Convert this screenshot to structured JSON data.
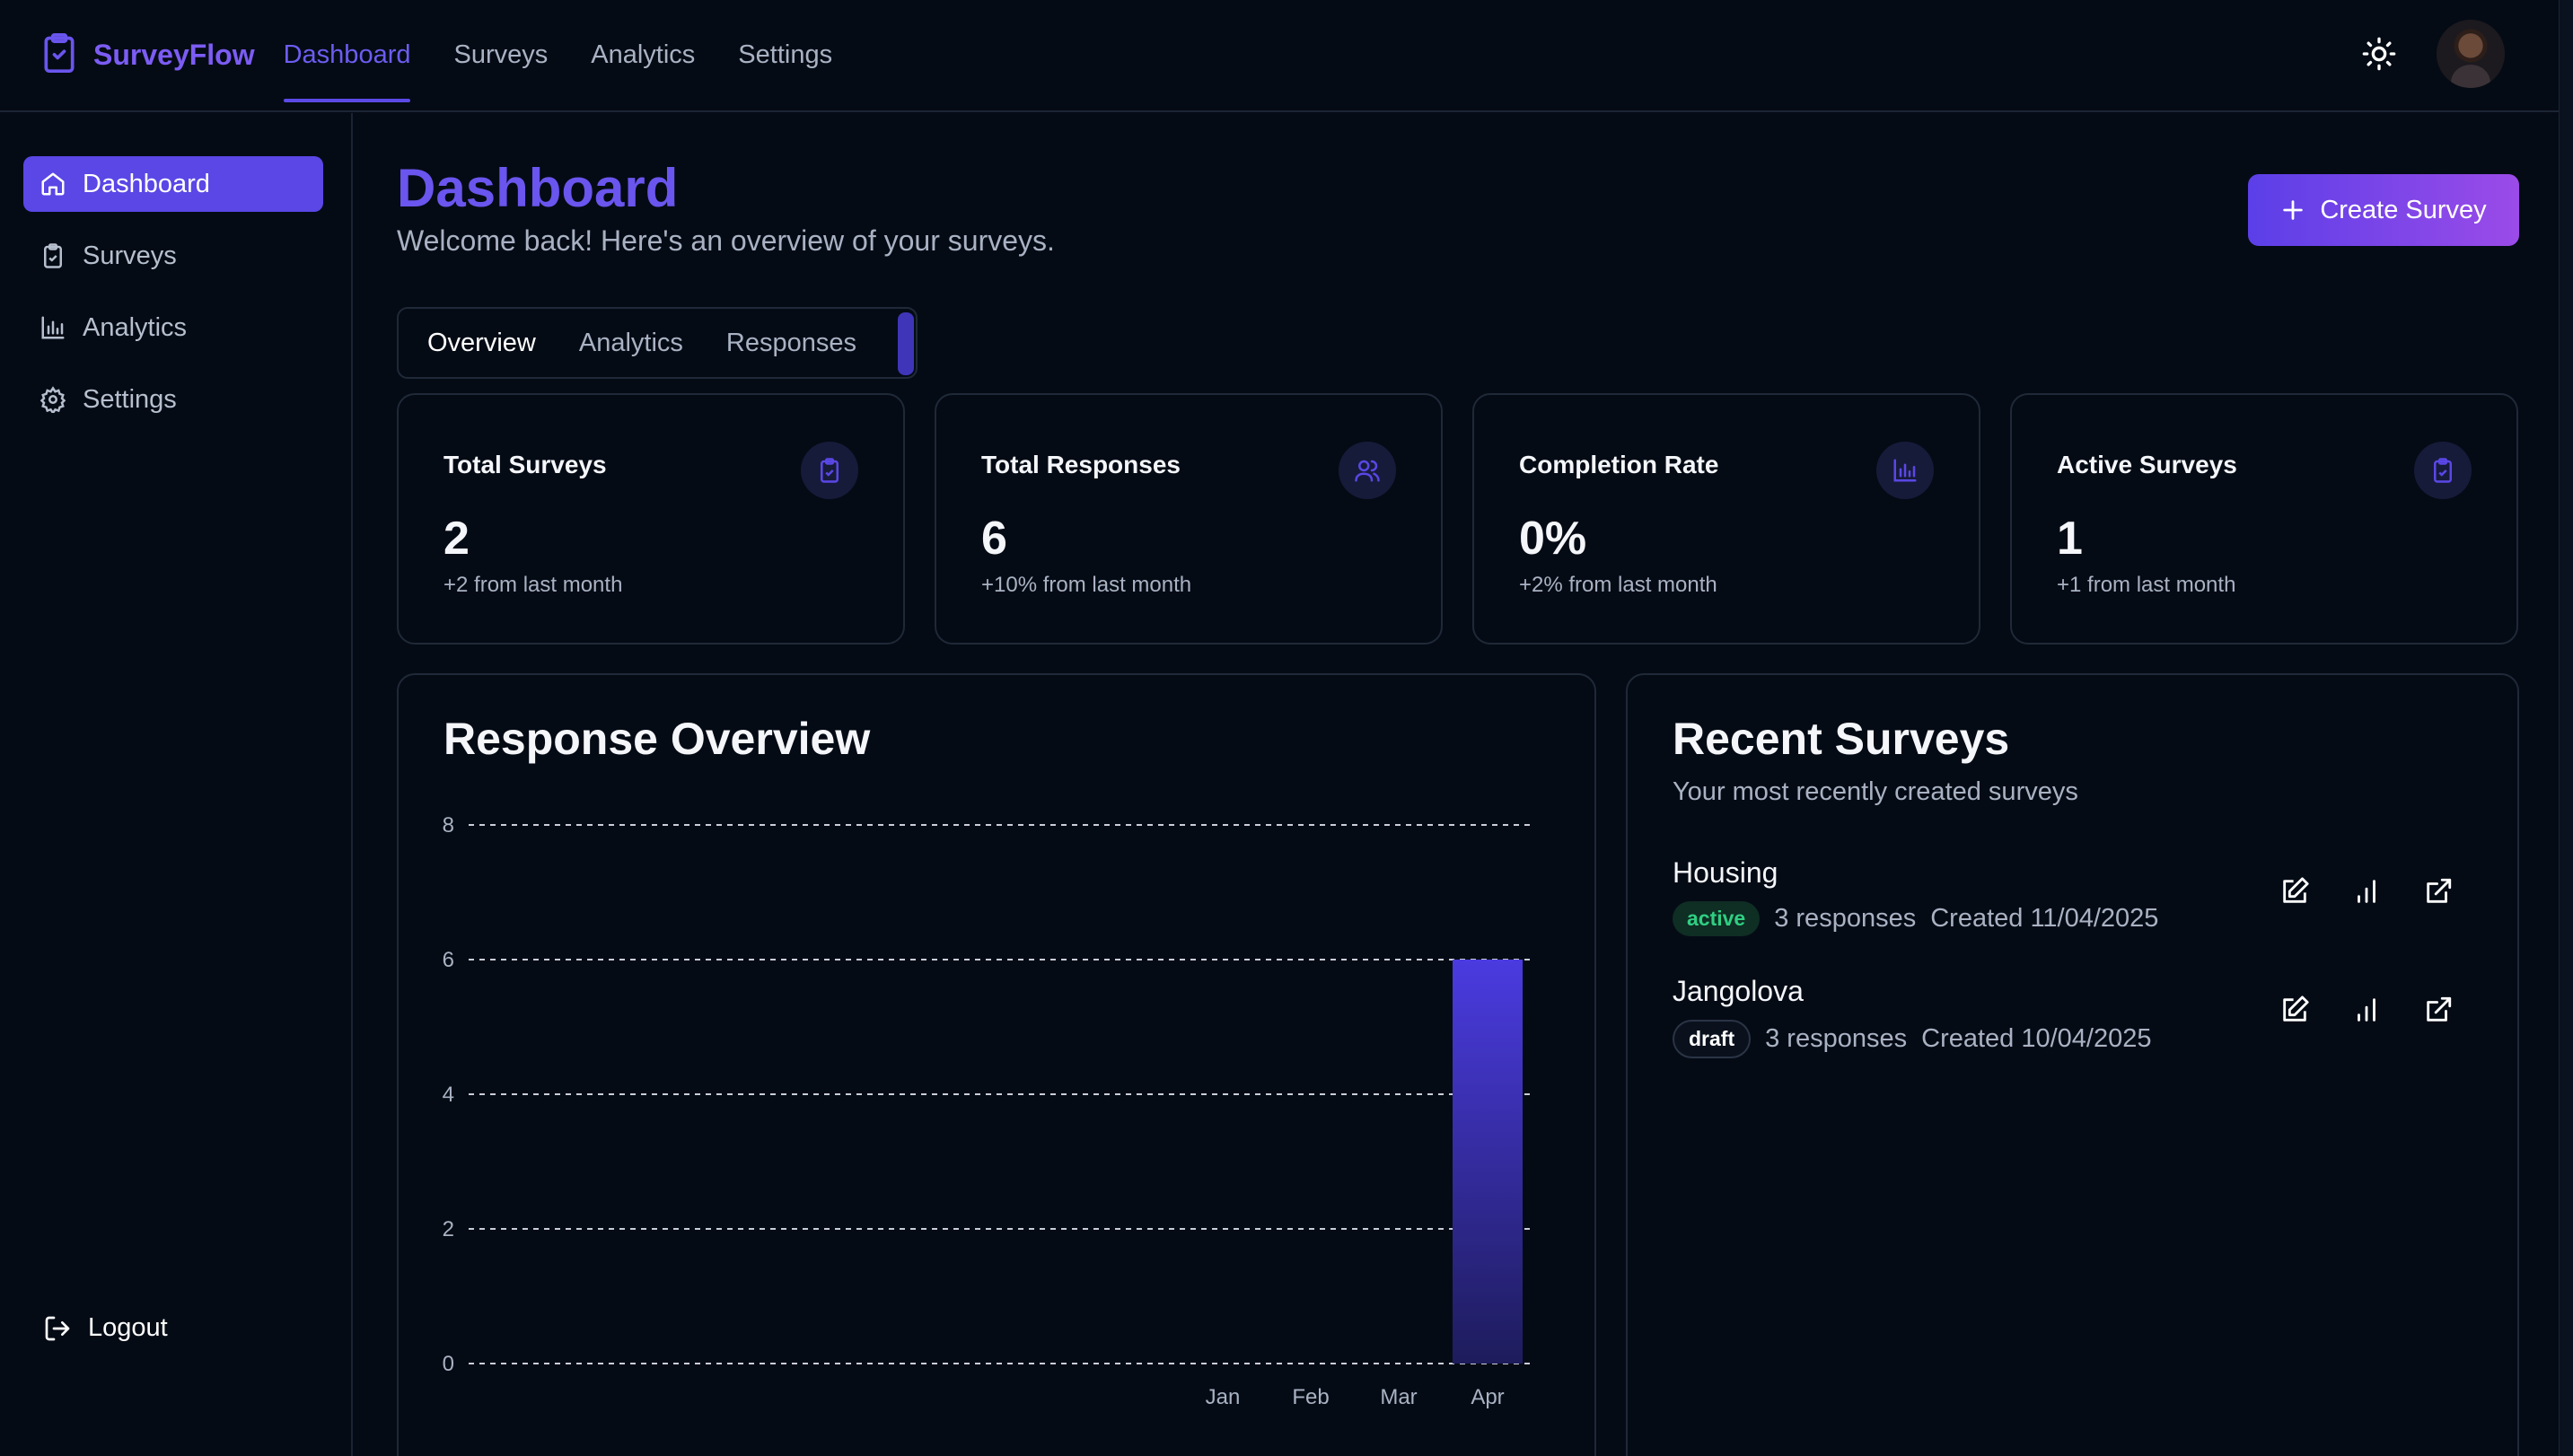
{
  "brand": {
    "name": "SurveyFlow"
  },
  "topnav": [
    "Dashboard",
    "Surveys",
    "Analytics",
    "Settings"
  ],
  "sidebar": {
    "items": [
      {
        "label": "Dashboard",
        "icon": "home-icon"
      },
      {
        "label": "Surveys",
        "icon": "clipboard-icon"
      },
      {
        "label": "Analytics",
        "icon": "bar-chart-icon"
      },
      {
        "label": "Settings",
        "icon": "gear-icon"
      }
    ],
    "logout": "Logout"
  },
  "header": {
    "title": "Dashboard",
    "subtitle": "Welcome back! Here's an overview of your surveys.",
    "create_button": "Create Survey"
  },
  "tabs": [
    "Overview",
    "Analytics",
    "Responses"
  ],
  "stats": [
    {
      "label": "Total Surveys",
      "value": "2",
      "delta": "+2 from last month",
      "icon": "clipboard-check-icon"
    },
    {
      "label": "Total Responses",
      "value": "6",
      "delta": "+10% from last month",
      "icon": "users-icon"
    },
    {
      "label": "Completion Rate",
      "value": "0%",
      "delta": "+2% from last month",
      "icon": "bar-chart-icon"
    },
    {
      "label": "Active Surveys",
      "value": "1",
      "delta": "+1 from last month",
      "icon": "clipboard-check-icon"
    }
  ],
  "response_overview": {
    "title": "Response Overview"
  },
  "chart_data": {
    "type": "bar",
    "categories": [
      "Jan",
      "Feb",
      "Mar",
      "Apr"
    ],
    "values": [
      0,
      0,
      0,
      6
    ],
    "title": "Response Overview",
    "xlabel": "",
    "ylabel": "",
    "ylim": [
      0,
      8
    ],
    "yticks": [
      "0",
      "2",
      "4",
      "6",
      "8"
    ],
    "grid": true,
    "bar_color": "#4a3be0"
  },
  "recent": {
    "title": "Recent Surveys",
    "subtitle": "Your most recently created surveys",
    "items": [
      {
        "name": "Housing",
        "status": "active",
        "responses": "3 responses",
        "created": "Created 11/04/2025"
      },
      {
        "name": "Jangolova",
        "status": "draft",
        "responses": "3 responses",
        "created": "Created 10/04/2025"
      }
    ]
  },
  "colors": {
    "accent": "#5a47e6",
    "background": "#050b15",
    "success": "#2fcf82"
  }
}
